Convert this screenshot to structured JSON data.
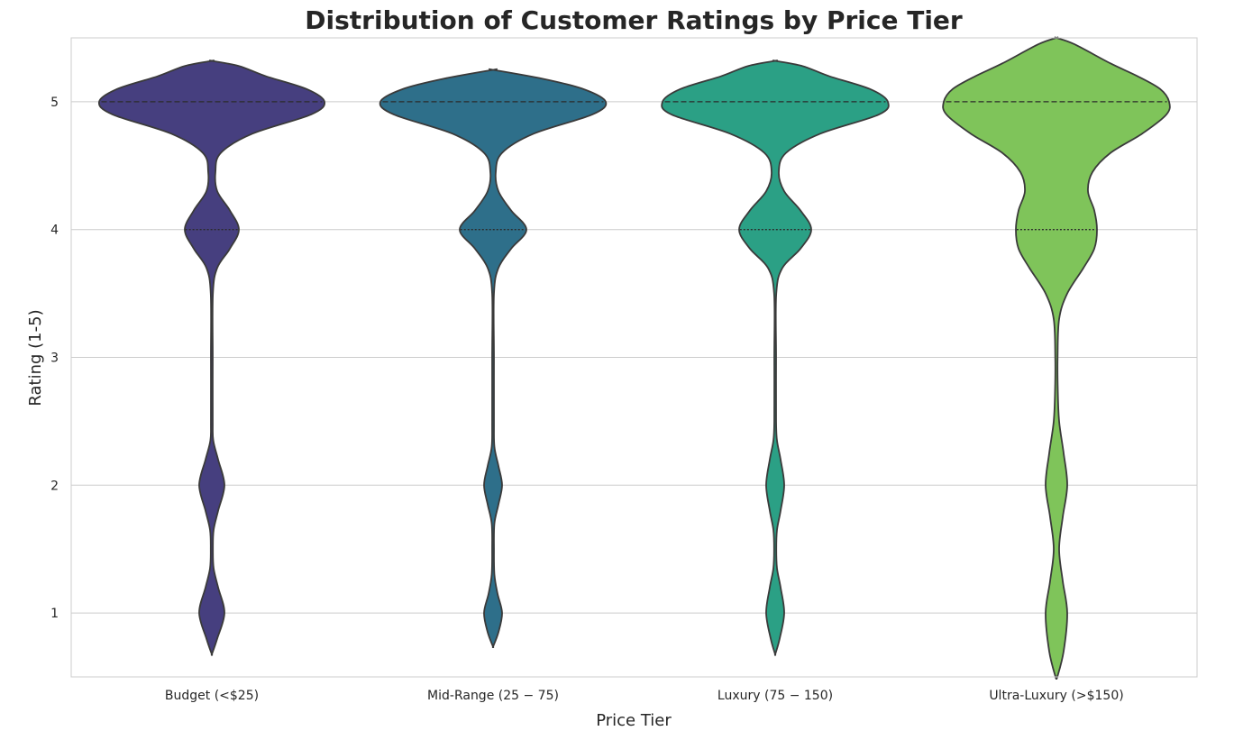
{
  "chart_data": {
    "type": "violin",
    "title": "Distribution of Customer Ratings by Price Tier",
    "xlabel": "Price Tier",
    "ylabel": "Rating (1-5)",
    "ylim": [
      0.5,
      5.5
    ],
    "yticks": [
      1,
      2,
      3,
      4,
      5
    ],
    "grid": true,
    "categories": [
      "Budget (<$25)",
      "Mid-Range ($25-$75)",
      "Luxury ($75-$150)",
      "Ultra-Luxury (>$150)"
    ],
    "tick_labels": [
      "Budget (<$25)",
      "Mid-Range (25 − 75)",
      "Luxury (75 − 150)",
      "Ultra-Luxury (>$150)"
    ],
    "colors": [
      "#463f7f",
      "#2e6f8a",
      "#2ba085",
      "#7fc45a"
    ],
    "series": [
      {
        "range": [
          0.68,
          5.32
        ],
        "quartile_lines": [
          5,
          4
        ],
        "density": [
          [
            0.68,
            0.2
          ],
          [
            0.8,
            6
          ],
          [
            1.0,
            14
          ],
          [
            1.2,
            7
          ],
          [
            1.35,
            2
          ],
          [
            1.5,
            1.2
          ],
          [
            1.65,
            2
          ],
          [
            1.8,
            7
          ],
          [
            2.0,
            14
          ],
          [
            2.2,
            7
          ],
          [
            2.35,
            1.6
          ],
          [
            2.5,
            1.0
          ],
          [
            3.0,
            1.0
          ],
          [
            3.5,
            1.2
          ],
          [
            3.7,
            6
          ],
          [
            3.85,
            20
          ],
          [
            4.0,
            30
          ],
          [
            4.15,
            20
          ],
          [
            4.3,
            6
          ],
          [
            4.45,
            4
          ],
          [
            4.6,
            10
          ],
          [
            4.75,
            45
          ],
          [
            4.9,
            110
          ],
          [
            5.0,
            125
          ],
          [
            5.1,
            105
          ],
          [
            5.2,
            60
          ],
          [
            5.28,
            30
          ],
          [
            5.32,
            0
          ]
        ]
      },
      {
        "range": [
          0.74,
          5.25
        ],
        "quartile_lines": [
          5,
          4
        ],
        "density": [
          [
            0.74,
            0.2
          ],
          [
            0.85,
            6
          ],
          [
            1.0,
            10
          ],
          [
            1.15,
            5
          ],
          [
            1.3,
            1.5
          ],
          [
            1.5,
            1.0
          ],
          [
            1.7,
            1.5
          ],
          [
            1.85,
            6
          ],
          [
            2.0,
            10
          ],
          [
            2.15,
            6
          ],
          [
            2.3,
            1.5
          ],
          [
            2.5,
            1.0
          ],
          [
            3.0,
            1.0
          ],
          [
            3.5,
            1.0
          ],
          [
            3.7,
            6
          ],
          [
            3.85,
            20
          ],
          [
            4.0,
            37
          ],
          [
            4.15,
            20
          ],
          [
            4.3,
            6
          ],
          [
            4.45,
            3
          ],
          [
            4.6,
            10
          ],
          [
            4.75,
            45
          ],
          [
            4.9,
            110
          ],
          [
            5.0,
            125
          ],
          [
            5.1,
            100
          ],
          [
            5.18,
            55
          ],
          [
            5.25,
            0
          ]
        ]
      },
      {
        "range": [
          0.68,
          5.32
        ],
        "quartile_lines": [
          5,
          4
        ],
        "density": [
          [
            0.68,
            0.2
          ],
          [
            0.8,
            5
          ],
          [
            1.0,
            10
          ],
          [
            1.2,
            6
          ],
          [
            1.35,
            2
          ],
          [
            1.5,
            1.2
          ],
          [
            1.65,
            2
          ],
          [
            1.8,
            6
          ],
          [
            2.0,
            10
          ],
          [
            2.2,
            6
          ],
          [
            2.35,
            2
          ],
          [
            2.5,
            1.0
          ],
          [
            3.0,
            1.0
          ],
          [
            3.5,
            1.2
          ],
          [
            3.7,
            8
          ],
          [
            3.85,
            28
          ],
          [
            4.0,
            40
          ],
          [
            4.15,
            28
          ],
          [
            4.3,
            10
          ],
          [
            4.45,
            4
          ],
          [
            4.6,
            12
          ],
          [
            4.75,
            50
          ],
          [
            4.9,
            115
          ],
          [
            5.0,
            125
          ],
          [
            5.1,
            105
          ],
          [
            5.2,
            60
          ],
          [
            5.28,
            30
          ],
          [
            5.32,
            0
          ]
        ]
      },
      {
        "range": [
          0.5,
          5.5
        ],
        "quartile_lines": [
          5,
          4
        ],
        "density": [
          [
            0.5,
            1
          ],
          [
            0.7,
            8
          ],
          [
            1.0,
            12
          ],
          [
            1.25,
            7
          ],
          [
            1.5,
            3
          ],
          [
            1.75,
            7
          ],
          [
            2.0,
            12
          ],
          [
            2.25,
            8
          ],
          [
            2.5,
            3
          ],
          [
            2.75,
            1.5
          ],
          [
            3.0,
            1.3
          ],
          [
            3.3,
            3
          ],
          [
            3.5,
            12
          ],
          [
            3.7,
            30
          ],
          [
            3.85,
            42
          ],
          [
            4.0,
            45
          ],
          [
            4.15,
            42
          ],
          [
            4.3,
            35
          ],
          [
            4.45,
            40
          ],
          [
            4.6,
            60
          ],
          [
            4.75,
            95
          ],
          [
            4.9,
            122
          ],
          [
            5.0,
            125
          ],
          [
            5.1,
            115
          ],
          [
            5.2,
            90
          ],
          [
            5.3,
            60
          ],
          [
            5.45,
            20
          ],
          [
            5.5,
            0
          ]
        ]
      }
    ]
  }
}
